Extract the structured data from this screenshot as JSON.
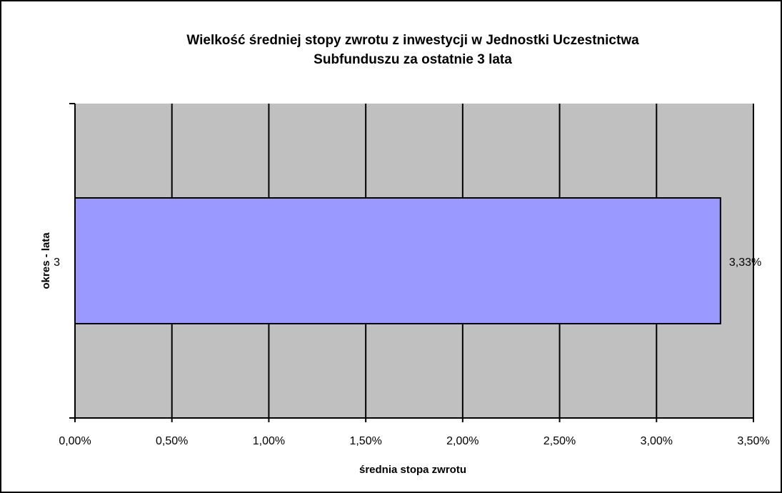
{
  "chart_data": {
    "type": "barh",
    "title": [
      "Wielkość średniej stopy zwrotu z inwestycji w Jednostki Uczestnictwa",
      "Subfunduszu za ostatnie 3 lata"
    ],
    "x_label": "średnia stopa zwrotu",
    "y_label": "okres - lata",
    "categories": [
      "3"
    ],
    "values": [
      3.33
    ],
    "value_labels": [
      "3,33%"
    ],
    "color": "#9999ff",
    "xlim": [
      0,
      3.5
    ],
    "xticks": [
      {
        "value": 0,
        "label": "0,00%"
      },
      {
        "value": 0.5,
        "label": "0,50%"
      },
      {
        "value": 1,
        "label": "1,00%"
      },
      {
        "value": 1.5,
        "label": "1,50%"
      },
      {
        "value": 2,
        "label": "2,00%"
      },
      {
        "value": 2.5,
        "label": "2,50%"
      },
      {
        "value": 3,
        "label": "3,00%"
      },
      {
        "value": 3.5,
        "label": "3,50%"
      }
    ],
    "grid": true
  }
}
